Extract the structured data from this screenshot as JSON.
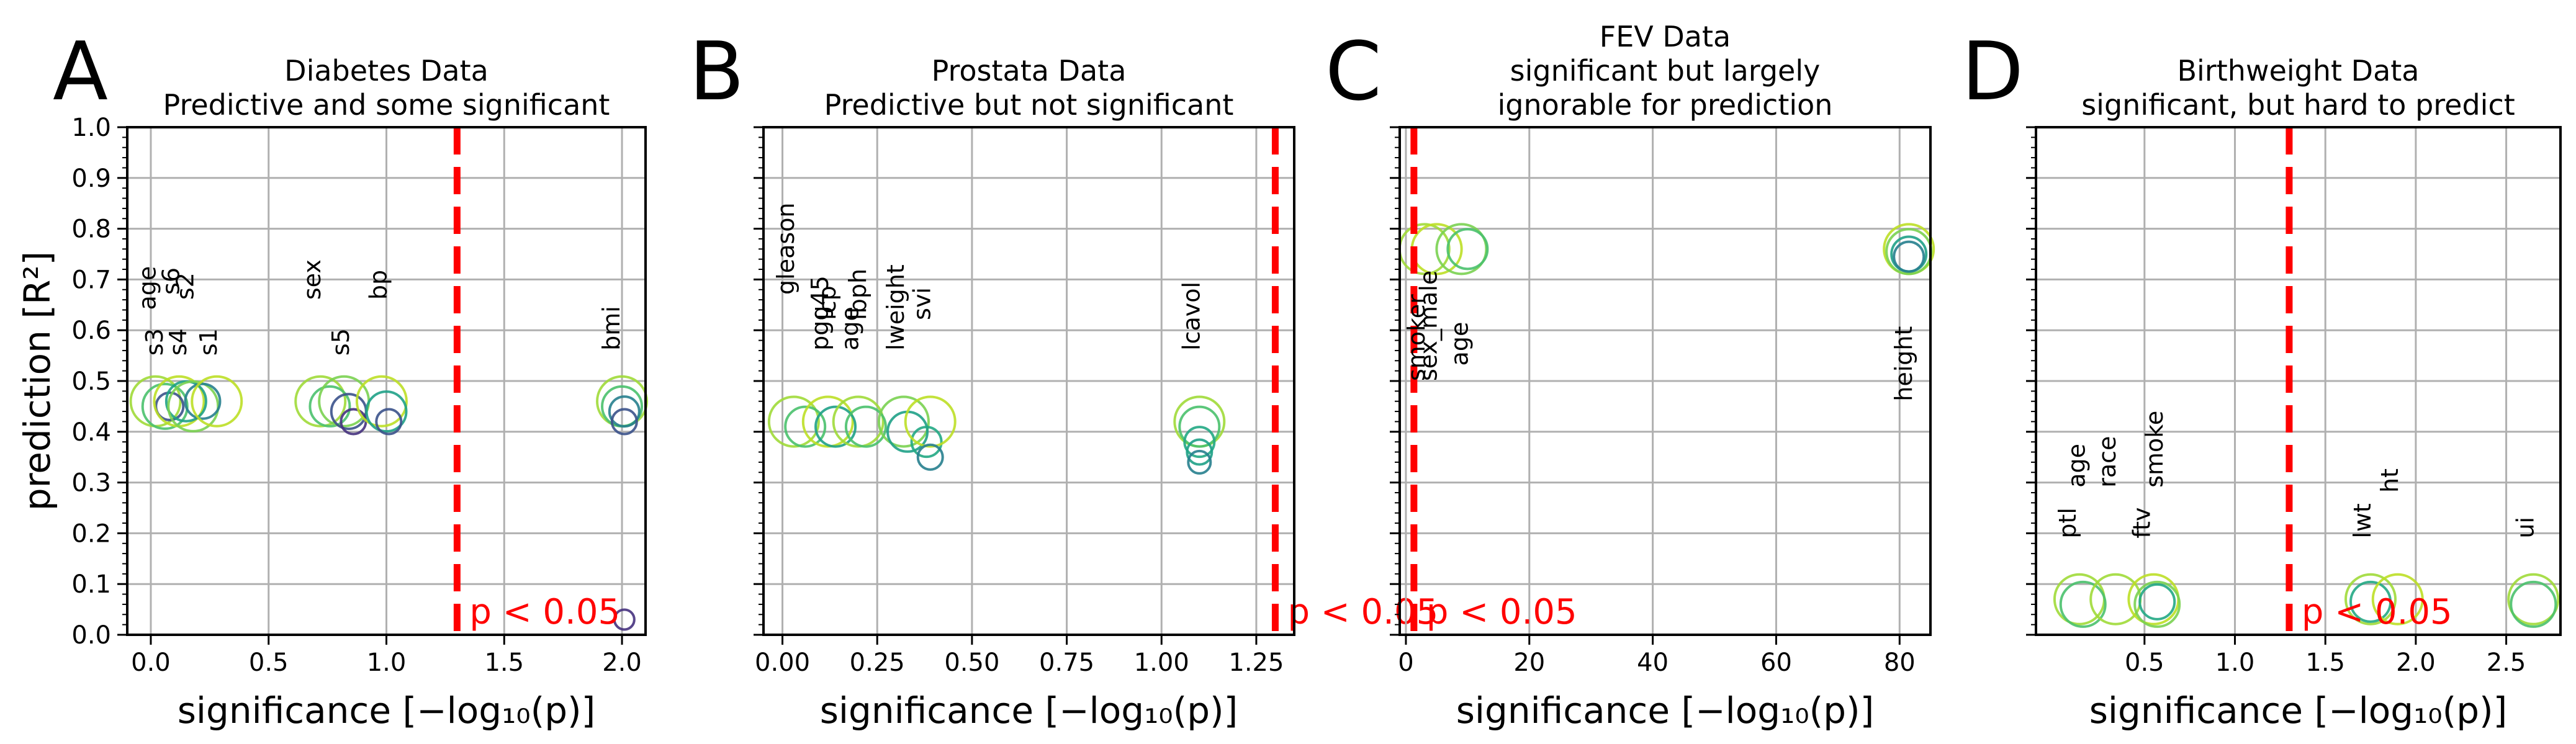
{
  "chart_data": [
    {
      "type": "scatter",
      "letter": "A",
      "title_lines": [
        "Diabetes Data",
        "Predictive and some significant"
      ],
      "xlabel": "significance [−log₁₀(p)]",
      "ylabel": "prediction [R²]",
      "xlim": [
        -0.1,
        2.1
      ],
      "xticks": [
        0.0,
        0.5,
        1.0,
        1.5,
        2.0
      ],
      "xtick_labels": [
        "0.0",
        "0.5",
        "1.0",
        "1.5",
        "2.0"
      ],
      "ylim": [
        0.0,
        1.0
      ],
      "yticks": [
        0.0,
        0.1,
        0.2,
        0.3,
        0.4,
        0.5,
        0.6,
        0.7,
        0.8,
        0.9,
        1.0
      ],
      "ytick_labels": [
        "0.0",
        "0.1",
        "0.2",
        "0.3",
        "0.4",
        "0.5",
        "0.6",
        "0.7",
        "0.8",
        "0.9",
        "1.0"
      ],
      "grid": true,
      "threshold_x": 1.3,
      "threshold_label": "p < 0.05",
      "variable_labels": [
        {
          "text": "age",
          "x": 0.02,
          "y": 0.64
        },
        {
          "text": "s6",
          "x": 0.12,
          "y": 0.67
        },
        {
          "text": "s2",
          "x": 0.18,
          "y": 0.66
        },
        {
          "text": "sex",
          "x": 0.72,
          "y": 0.66
        },
        {
          "text": "bp",
          "x": 1.0,
          "y": 0.66
        },
        {
          "text": "s3",
          "x": 0.05,
          "y": 0.55
        },
        {
          "text": "s4",
          "x": 0.15,
          "y": 0.55
        },
        {
          "text": "s1",
          "x": 0.28,
          "y": 0.55
        },
        {
          "text": "s5",
          "x": 0.84,
          "y": 0.55
        },
        {
          "text": "bmi",
          "x": 1.99,
          "y": 0.56
        }
      ],
      "points": [
        {
          "x": 0.02,
          "y": 0.46,
          "size": 1.0,
          "color": "#a0da39"
        },
        {
          "x": 0.06,
          "y": 0.45,
          "size": 0.9,
          "color": "#4ac16d"
        },
        {
          "x": 0.08,
          "y": 0.45,
          "size": 0.55,
          "color": "#3b528b"
        },
        {
          "x": 0.12,
          "y": 0.46,
          "size": 1.0,
          "color": "#bddf26"
        },
        {
          "x": 0.15,
          "y": 0.46,
          "size": 0.8,
          "color": "#1fa187"
        },
        {
          "x": 0.18,
          "y": 0.45,
          "size": 1.0,
          "color": "#7ad151"
        },
        {
          "x": 0.22,
          "y": 0.46,
          "size": 0.7,
          "color": "#277f8e"
        },
        {
          "x": 0.28,
          "y": 0.46,
          "size": 1.0,
          "color": "#bddf26"
        },
        {
          "x": 0.72,
          "y": 0.46,
          "size": 1.0,
          "color": "#a0da39"
        },
        {
          "x": 0.76,
          "y": 0.45,
          "size": 0.8,
          "color": "#4ac16d"
        },
        {
          "x": 0.82,
          "y": 0.46,
          "size": 1.0,
          "color": "#7ad151"
        },
        {
          "x": 0.84,
          "y": 0.44,
          "size": 0.7,
          "color": "#3b528b"
        },
        {
          "x": 0.86,
          "y": 0.42,
          "size": 0.5,
          "color": "#46327e"
        },
        {
          "x": 0.98,
          "y": 0.46,
          "size": 1.0,
          "color": "#bddf26"
        },
        {
          "x": 1.0,
          "y": 0.44,
          "size": 0.8,
          "color": "#1fa187"
        },
        {
          "x": 1.01,
          "y": 0.42,
          "size": 0.5,
          "color": "#3b528b"
        },
        {
          "x": 2.0,
          "y": 0.46,
          "size": 1.0,
          "color": "#a0da39"
        },
        {
          "x": 2.0,
          "y": 0.45,
          "size": 0.8,
          "color": "#4ac16d"
        },
        {
          "x": 2.01,
          "y": 0.44,
          "size": 0.6,
          "color": "#277f8e"
        },
        {
          "x": 2.01,
          "y": 0.42,
          "size": 0.5,
          "color": "#3b528b"
        },
        {
          "x": 2.01,
          "y": 0.03,
          "size": 0.4,
          "color": "#46327e"
        }
      ]
    },
    {
      "type": "scatter",
      "letter": "B",
      "title_lines": [
        "Prostata Data",
        "Predictive but not significant"
      ],
      "xlabel": "significance [−log₁₀(p)]",
      "xlim": [
        -0.05,
        1.35
      ],
      "xticks": [
        0.0,
        0.25,
        0.5,
        0.75,
        1.0,
        1.25
      ],
      "xtick_labels": [
        "0.00",
        "0.25",
        "0.50",
        "0.75",
        "1.00",
        "1.25"
      ],
      "ylim": [
        0.0,
        1.0
      ],
      "yticks": [
        0.0,
        0.1,
        0.2,
        0.3,
        0.4,
        0.5,
        0.6,
        0.7,
        0.8,
        0.9,
        1.0
      ],
      "grid": true,
      "threshold_x": 1.3,
      "threshold_label": "p < 0.05",
      "variable_labels": [
        {
          "text": "gleason",
          "x": 0.03,
          "y": 0.67
        },
        {
          "text": "pgg45",
          "x": 0.12,
          "y": 0.56
        },
        {
          "text": "lcp",
          "x": 0.14,
          "y": 0.62
        },
        {
          "text": "age",
          "x": 0.2,
          "y": 0.56
        },
        {
          "text": "lbph",
          "x": 0.22,
          "y": 0.62
        },
        {
          "text": "lweight",
          "x": 0.32,
          "y": 0.56
        },
        {
          "text": "svi",
          "x": 0.39,
          "y": 0.62
        },
        {
          "text": "lcavol",
          "x": 1.1,
          "y": 0.56
        }
      ],
      "points": [
        {
          "x": 0.03,
          "y": 0.42,
          "size": 1.0,
          "color": "#a0da39"
        },
        {
          "x": 0.06,
          "y": 0.41,
          "size": 0.8,
          "color": "#4ac16d"
        },
        {
          "x": 0.12,
          "y": 0.42,
          "size": 1.0,
          "color": "#bddf26"
        },
        {
          "x": 0.14,
          "y": 0.41,
          "size": 0.8,
          "color": "#1fa187"
        },
        {
          "x": 0.2,
          "y": 0.42,
          "size": 1.0,
          "color": "#a0da39"
        },
        {
          "x": 0.22,
          "y": 0.41,
          "size": 0.8,
          "color": "#4ac16d"
        },
        {
          "x": 0.32,
          "y": 0.42,
          "size": 1.0,
          "color": "#7ad151"
        },
        {
          "x": 0.33,
          "y": 0.4,
          "size": 0.8,
          "color": "#1fa187"
        },
        {
          "x": 0.38,
          "y": 0.38,
          "size": 0.6,
          "color": "#22a884"
        },
        {
          "x": 0.39,
          "y": 0.42,
          "size": 1.0,
          "color": "#bddf26"
        },
        {
          "x": 0.39,
          "y": 0.35,
          "size": 0.5,
          "color": "#277f8e"
        },
        {
          "x": 1.1,
          "y": 0.42,
          "size": 1.0,
          "color": "#a0da39"
        },
        {
          "x": 1.1,
          "y": 0.41,
          "size": 0.8,
          "color": "#4ac16d"
        },
        {
          "x": 1.1,
          "y": 0.38,
          "size": 0.6,
          "color": "#22a884"
        },
        {
          "x": 1.1,
          "y": 0.36,
          "size": 0.5,
          "color": "#1fa187"
        },
        {
          "x": 1.1,
          "y": 0.34,
          "size": 0.45,
          "color": "#277f8e"
        }
      ]
    },
    {
      "type": "scatter",
      "letter": "C",
      "title_lines": [
        "FEV Data",
        "significant but largely",
        "ignorable for prediction"
      ],
      "xlabel": "significance [−log₁₀(p)]",
      "xlim": [
        -1,
        85
      ],
      "xticks": [
        0,
        20,
        40,
        60,
        80
      ],
      "xtick_labels": [
        "0",
        "20",
        "40",
        "60",
        "80"
      ],
      "ylim": [
        0.0,
        1.0
      ],
      "yticks": [
        0.0,
        0.1,
        0.2,
        0.3,
        0.4,
        0.5,
        0.6,
        0.7,
        0.8,
        0.9,
        1.0
      ],
      "grid": true,
      "threshold_x": 1.3,
      "threshold_label": "p < 0.05",
      "variable_labels": [
        {
          "text": "smoker",
          "x": 3.0,
          "y": 0.5
        },
        {
          "text": "sex_male",
          "x": 5.0,
          "y": 0.5
        },
        {
          "text": "age",
          "x": 10.0,
          "y": 0.53
        },
        {
          "text": "height",
          "x": 82.0,
          "y": 0.46
        }
      ],
      "points": [
        {
          "x": 3.0,
          "y": 0.76,
          "size": 1.0,
          "color": "#a0da39"
        },
        {
          "x": 5.0,
          "y": 0.76,
          "size": 1.0,
          "color": "#bddf26"
        },
        {
          "x": 9.0,
          "y": 0.76,
          "size": 1.0,
          "color": "#7ad151"
        },
        {
          "x": 10.0,
          "y": 0.76,
          "size": 0.8,
          "color": "#4ac16d"
        },
        {
          "x": 81.5,
          "y": 0.76,
          "size": 1.0,
          "color": "#bddf26"
        },
        {
          "x": 81.5,
          "y": 0.755,
          "size": 0.9,
          "color": "#7ad151"
        },
        {
          "x": 81.5,
          "y": 0.75,
          "size": 0.7,
          "color": "#1fa187"
        },
        {
          "x": 81.5,
          "y": 0.745,
          "size": 0.6,
          "color": "#277f8e"
        }
      ]
    },
    {
      "type": "scatter",
      "letter": "D",
      "title_lines": [
        "Birthweight Data",
        "significant, but hard to predict"
      ],
      "xlabel": "significance [−log₁₀(p)]",
      "xlim": [
        -0.1,
        2.8
      ],
      "xticks": [
        0.5,
        1.0,
        1.5,
        2.0,
        2.5
      ],
      "xtick_labels": [
        "0.5",
        "1.0",
        "1.5",
        "2.0",
        "2.5"
      ],
      "ylim": [
        0.0,
        1.0
      ],
      "yticks": [
        0.0,
        0.1,
        0.2,
        0.3,
        0.4,
        0.5,
        0.6,
        0.7,
        0.8,
        0.9,
        1.0
      ],
      "grid": true,
      "threshold_x": 1.3,
      "threshold_label": "p < 0.05",
      "variable_labels": [
        {
          "text": "age",
          "x": 0.17,
          "y": 0.29
        },
        {
          "text": "race",
          "x": 0.34,
          "y": 0.29
        },
        {
          "text": "smoke",
          "x": 0.6,
          "y": 0.29
        },
        {
          "text": "ptl",
          "x": 0.12,
          "y": 0.19
        },
        {
          "text": "ftv",
          "x": 0.53,
          "y": 0.19
        },
        {
          "text": "ht",
          "x": 1.9,
          "y": 0.28
        },
        {
          "text": "lwt",
          "x": 1.75,
          "y": 0.19
        },
        {
          "text": "ui",
          "x": 2.65,
          "y": 0.19
        }
      ],
      "points": [
        {
          "x": 0.14,
          "y": 0.07,
          "size": 1.0,
          "color": "#a0da39"
        },
        {
          "x": 0.16,
          "y": 0.06,
          "size": 0.9,
          "color": "#4ac16d"
        },
        {
          "x": 0.34,
          "y": 0.07,
          "size": 1.0,
          "color": "#a0da39"
        },
        {
          "x": 0.55,
          "y": 0.07,
          "size": 1.0,
          "color": "#bddf26"
        },
        {
          "x": 0.57,
          "y": 0.06,
          "size": 0.9,
          "color": "#7ad151"
        },
        {
          "x": 0.57,
          "y": 0.065,
          "size": 0.7,
          "color": "#22a884"
        },
        {
          "x": 1.75,
          "y": 0.07,
          "size": 1.0,
          "color": "#a0da39"
        },
        {
          "x": 1.75,
          "y": 0.065,
          "size": 0.8,
          "color": "#22a884"
        },
        {
          "x": 1.9,
          "y": 0.07,
          "size": 1.0,
          "color": "#bddf26"
        },
        {
          "x": 2.65,
          "y": 0.07,
          "size": 1.0,
          "color": "#a0da39"
        },
        {
          "x": 2.65,
          "y": 0.06,
          "size": 0.9,
          "color": "#4ac16d"
        }
      ]
    }
  ]
}
